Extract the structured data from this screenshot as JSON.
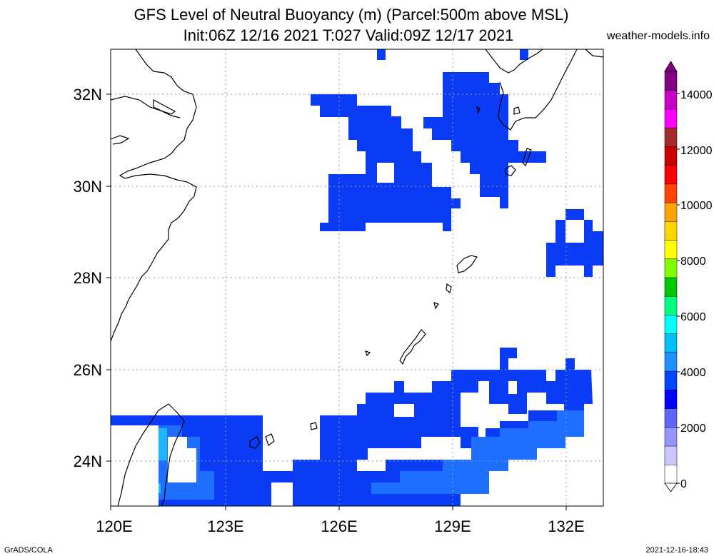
{
  "header": {
    "title_line1": "GFS Level of Neutral Buoyancy (m) (Parcel:500m above MSL)",
    "title_line2": "Init:06Z 12/16 2021 T:027 Valid:09Z 12/17 2021",
    "brand": "weather-models.info"
  },
  "map": {
    "lon_labels": [
      "120E",
      "123E",
      "126E",
      "129E",
      "132E"
    ],
    "lat_labels": [
      "32N",
      "30N",
      "28N",
      "26N",
      "24N"
    ],
    "lon_range": [
      120,
      133
    ],
    "lat_range": [
      23,
      33
    ]
  },
  "colorbar": {
    "labels": [
      "14000",
      "12000",
      "10000",
      "8000",
      "6000",
      "4000",
      "2000",
      "0"
    ],
    "colors": [
      "#ffffff",
      "#c8c8ff",
      "#9696ff",
      "#6464ff",
      "#0000ff",
      "#0046ff",
      "#1e90ff",
      "#00bfff",
      "#00ffff",
      "#00ff7f",
      "#00c800",
      "#7fff00",
      "#ffff00",
      "#ffd700",
      "#ffa500",
      "#ff4500",
      "#ff0000",
      "#c80000",
      "#a52a2a",
      "#ff00ff",
      "#c800c8",
      "#800080"
    ]
  },
  "footer": {
    "credit": "GrADS/COLA",
    "timestamp": "2021-12-16-18:43"
  }
}
